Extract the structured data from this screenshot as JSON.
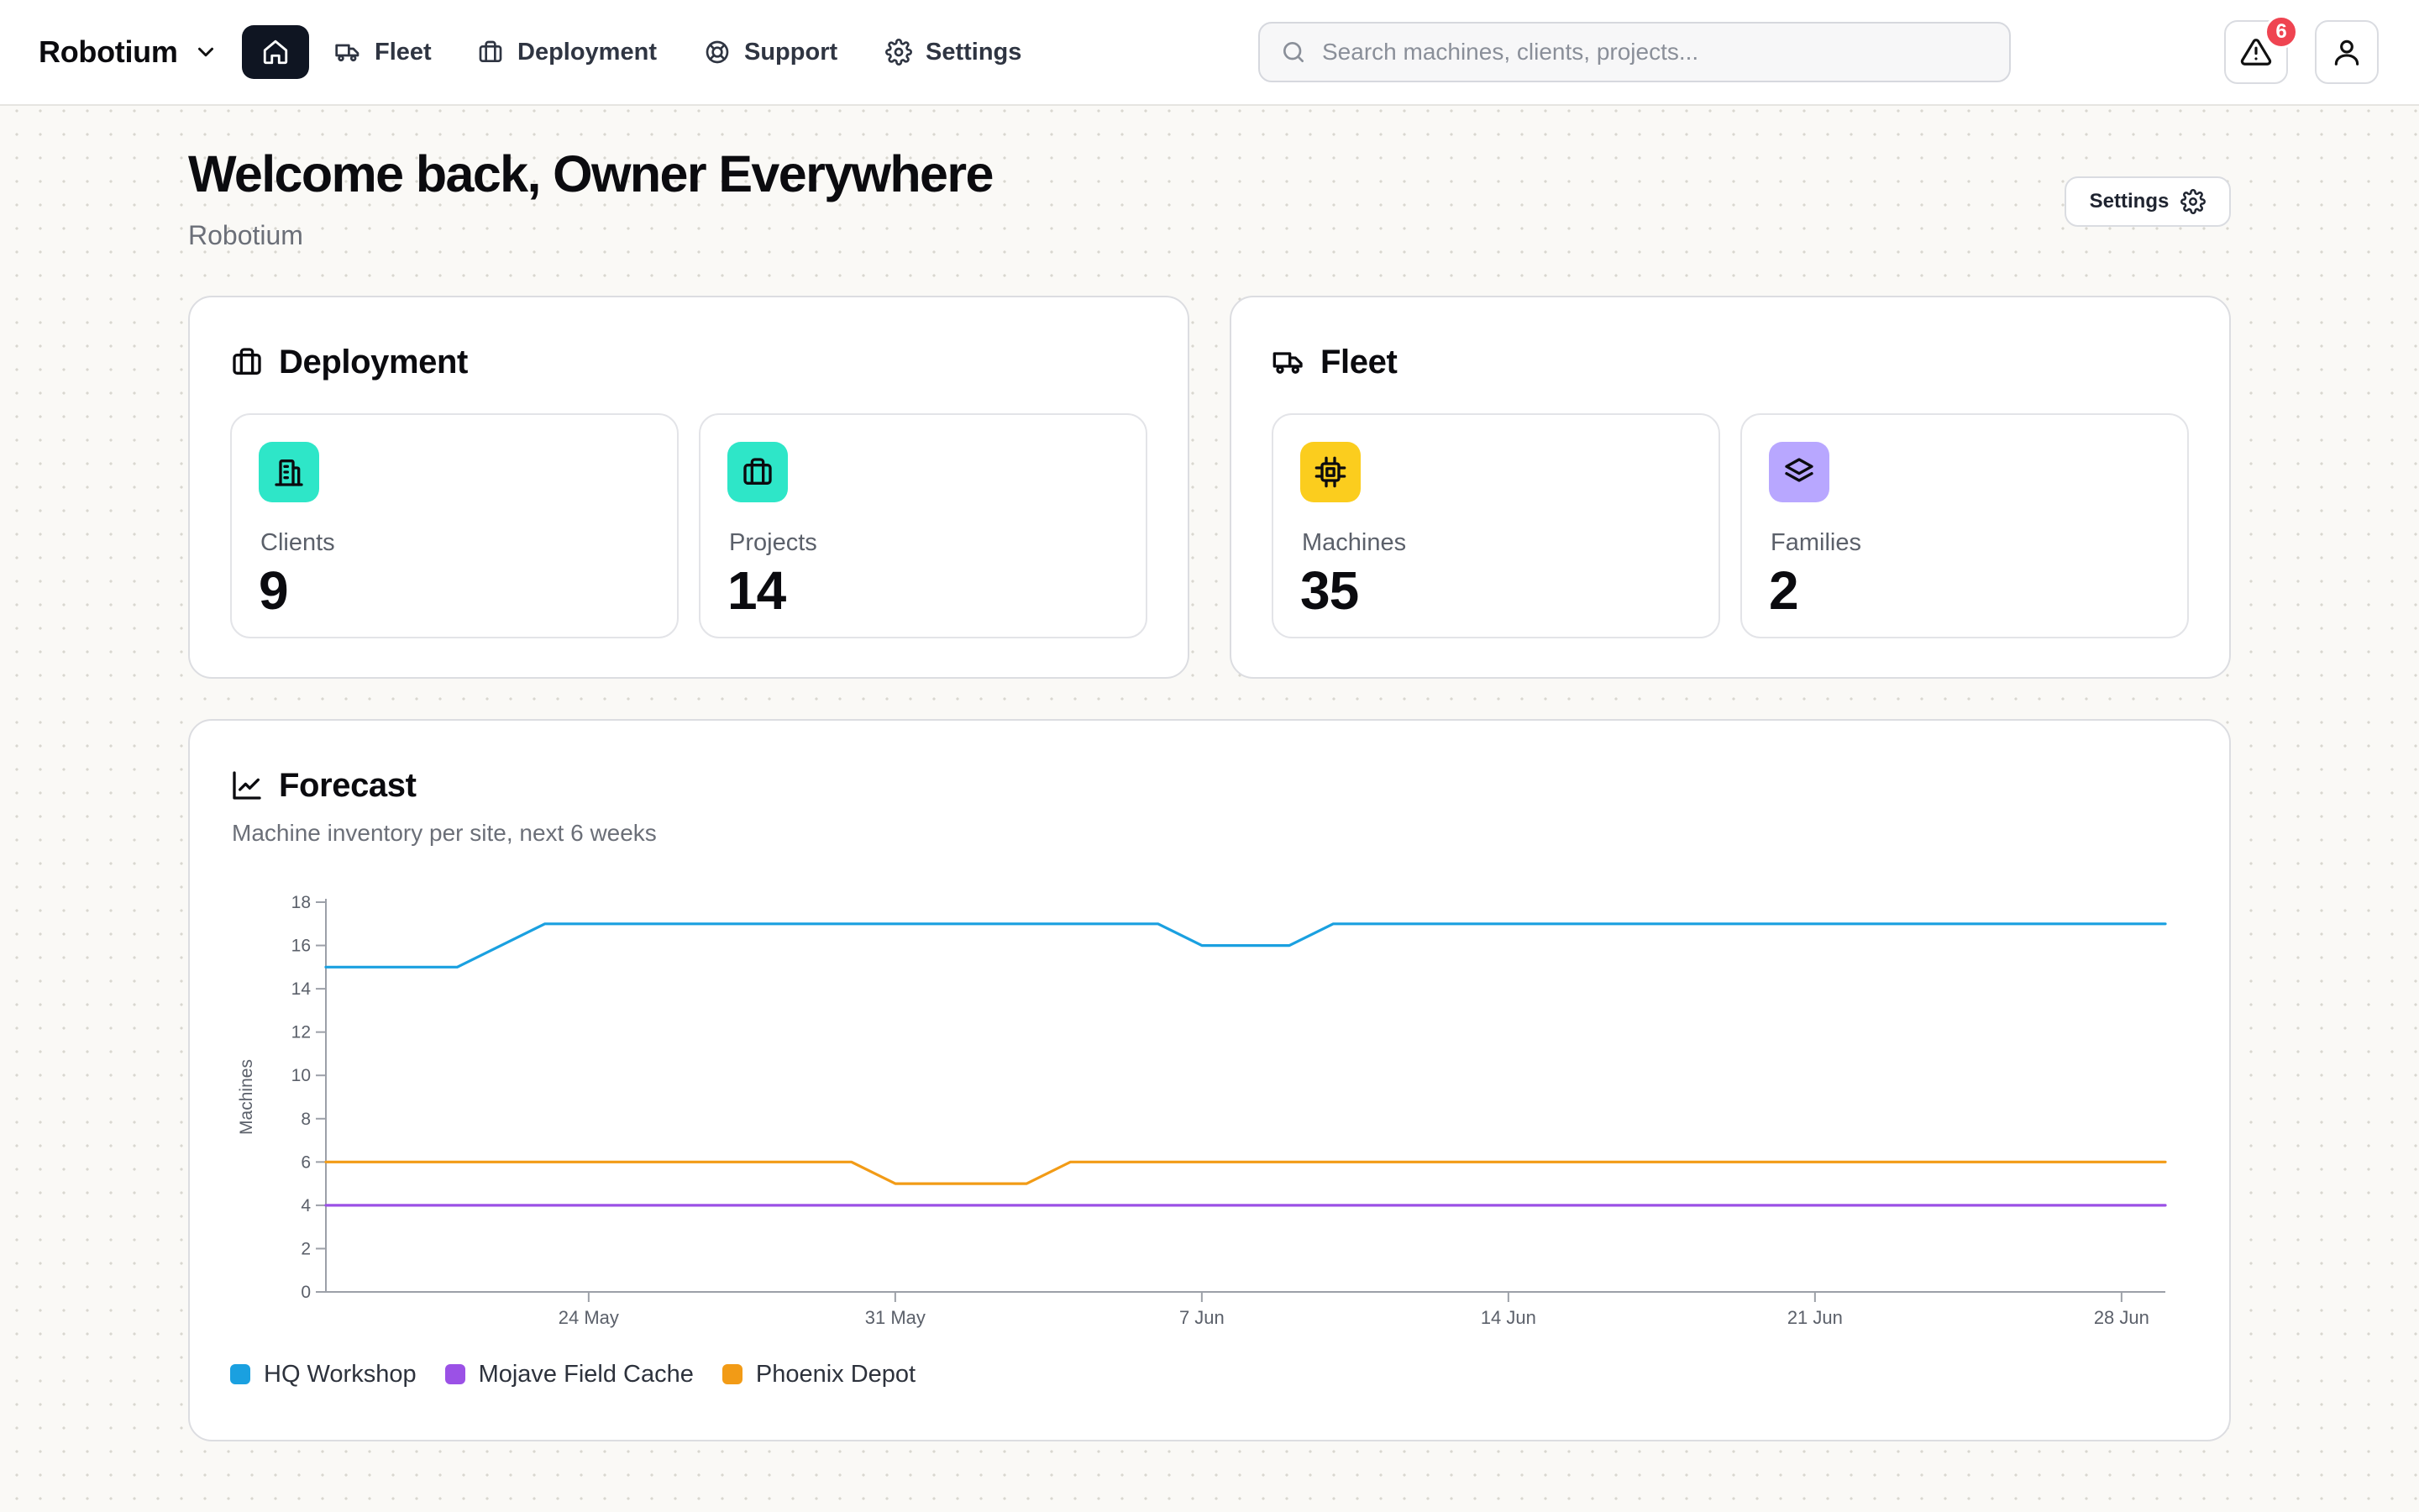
{
  "topbar": {
    "brand": "Robotium",
    "nav": [
      {
        "label": "Fleet"
      },
      {
        "label": "Deployment"
      },
      {
        "label": "Support"
      },
      {
        "label": "Settings"
      }
    ],
    "search_placeholder": "Search machines, clients, projects...",
    "alerts_count": "6"
  },
  "header": {
    "welcome": "Welcome back, Owner Everywhere",
    "org": "Robotium",
    "settings_label": "Settings"
  },
  "deployment": {
    "title": "Deployment",
    "stats": [
      {
        "label": "Clients",
        "value": "9",
        "icon": "building-icon",
        "color": "#2ee6c8"
      },
      {
        "label": "Projects",
        "value": "14",
        "icon": "briefcase-icon",
        "color": "#2ee6c8"
      }
    ]
  },
  "fleet": {
    "title": "Fleet",
    "stats": [
      {
        "label": "Machines",
        "value": "35",
        "icon": "chip-icon",
        "color": "#fbcd1e"
      },
      {
        "label": "Families",
        "value": "2",
        "icon": "layers-icon",
        "color": "#b8a7ff"
      }
    ]
  },
  "forecast": {
    "title": "Forecast",
    "subtitle": "Machine inventory per site, next 6 weeks"
  },
  "chart_data": {
    "type": "line",
    "title": "Forecast",
    "subtitle": "Machine inventory per site, next 6 weeks",
    "xlabel": "",
    "ylabel": "Machines",
    "ylim": [
      0,
      18
    ],
    "yticks": [
      0,
      2,
      4,
      6,
      8,
      10,
      12,
      14,
      16,
      18
    ],
    "xrange": [
      "18 May",
      "29 Jun"
    ],
    "xticks": [
      "24 May",
      "31 May",
      "7 Jun",
      "14 Jun",
      "21 Jun",
      "28 Jun"
    ],
    "grid": false,
    "legend_position": "bottom-left",
    "series": [
      {
        "name": "HQ Workshop",
        "color": "#1aa0e0",
        "points": [
          [
            "18 May",
            15
          ],
          [
            "21 May",
            15
          ],
          [
            "23 May",
            17
          ],
          [
            "6 Jun",
            17
          ],
          [
            "7 Jun",
            16
          ],
          [
            "9 Jun",
            16
          ],
          [
            "10 Jun",
            17
          ],
          [
            "29 Jun",
            17
          ]
        ]
      },
      {
        "name": "Mojave Field Cache",
        "color": "#9b51e6",
        "points": [
          [
            "18 May",
            4
          ],
          [
            "29 Jun",
            4
          ]
        ]
      },
      {
        "name": "Phoenix Depot",
        "color": "#f29b16",
        "points": [
          [
            "18 May",
            6
          ],
          [
            "30 May",
            6
          ],
          [
            "31 May",
            5
          ],
          [
            "3 Jun",
            5
          ],
          [
            "4 Jun",
            6
          ],
          [
            "29 Jun",
            6
          ]
        ]
      }
    ]
  }
}
